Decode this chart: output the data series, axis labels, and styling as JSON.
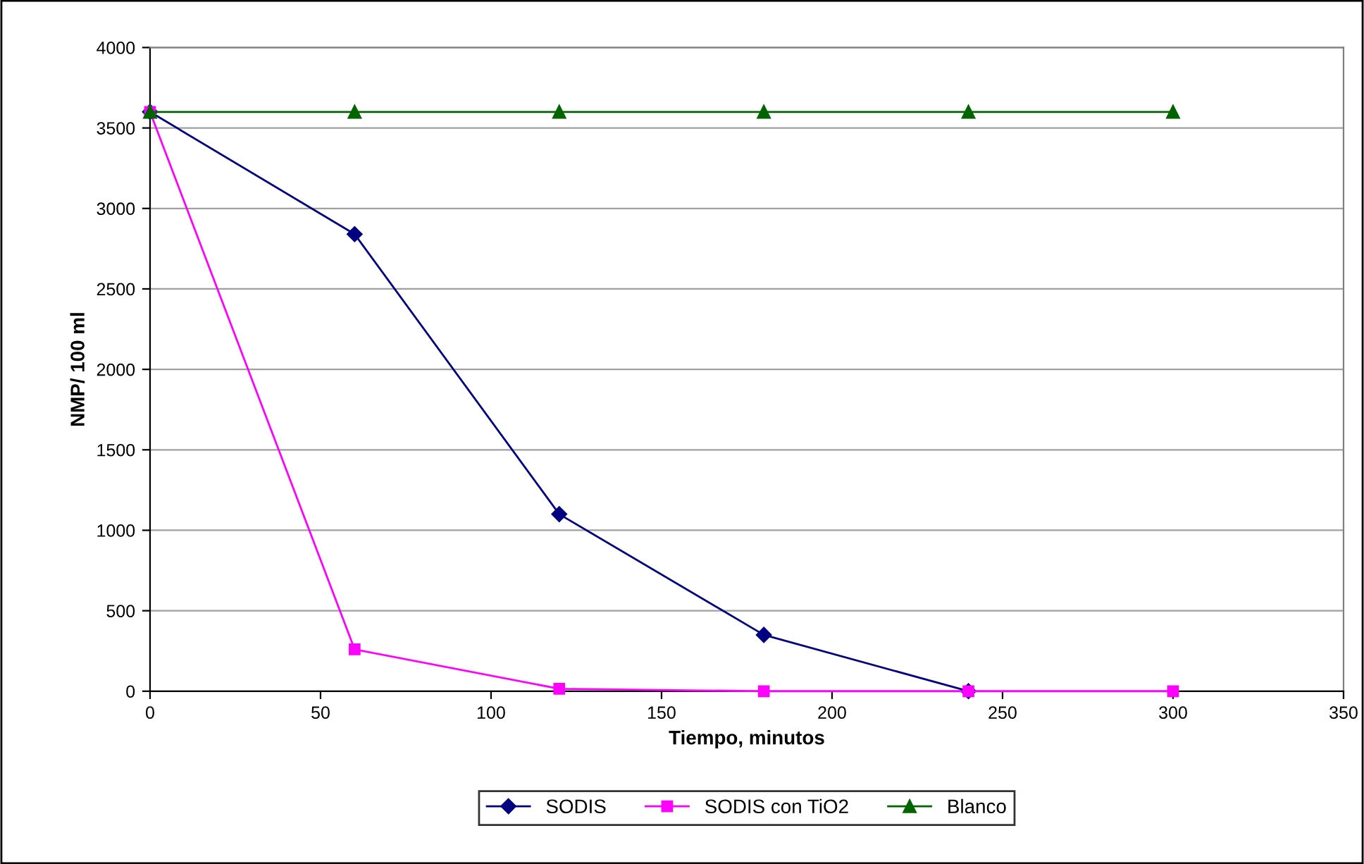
{
  "chart_data": {
    "type": "line",
    "xlabel": "Tiempo, minutos",
    "ylabel": "NMP/ 100 ml",
    "x": [
      0,
      60,
      120,
      180,
      240,
      300
    ],
    "series": [
      {
        "name": "SODIS",
        "color": "#000080",
        "marker": "diamond",
        "values": [
          3600,
          2840,
          1100,
          350,
          0,
          null
        ]
      },
      {
        "name": "SODIS con TiO2",
        "color": "#ff00ff",
        "marker": "square",
        "values": [
          3600,
          260,
          15,
          0,
          0,
          0
        ]
      },
      {
        "name": "Blanco",
        "color": "#006400",
        "marker": "triangle",
        "values": [
          3600,
          3600,
          3600,
          3600,
          3600,
          3600
        ]
      }
    ],
    "xlim": [
      0,
      350
    ],
    "xticks": [
      0,
      50,
      100,
      150,
      200,
      250,
      300,
      350
    ],
    "ylim": [
      0,
      4000
    ],
    "yticks": [
      0,
      500,
      1000,
      1500,
      2000,
      2500,
      3000,
      3500,
      4000
    ],
    "grid": "y",
    "legend": "bottom",
    "line_style": "solid"
  }
}
